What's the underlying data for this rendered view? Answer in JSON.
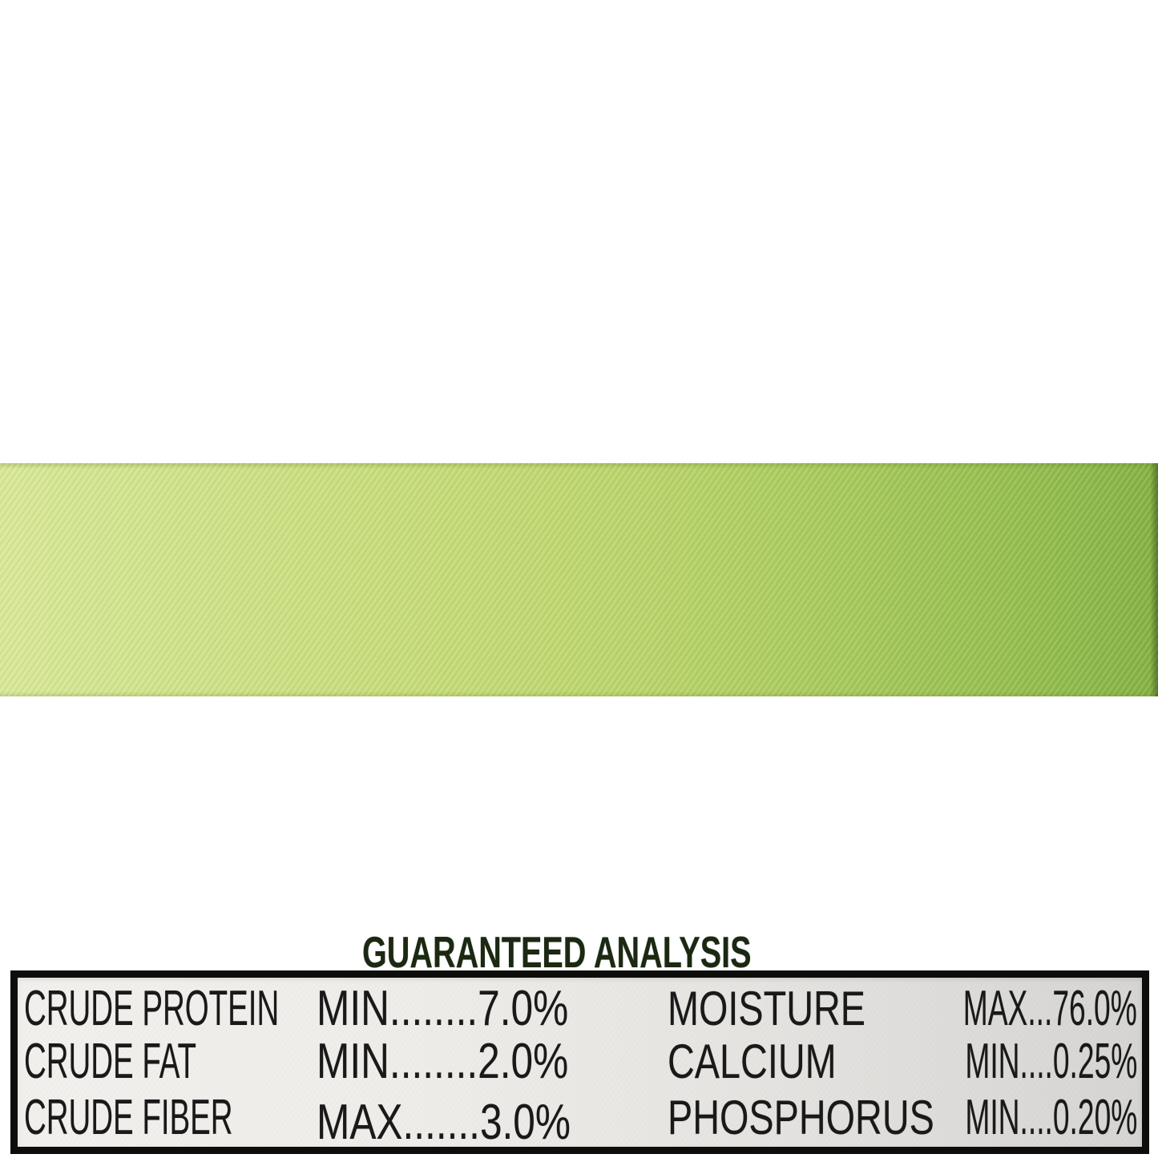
{
  "label": {
    "title": "GUARANTEED ANALYSIS",
    "rows": [
      {
        "left_name": "CRUDE PROTEIN",
        "left_value": "MIN........7.0%",
        "right_name": "MOISTURE",
        "right_value": "MAX...76.0%"
      },
      {
        "left_name": "CRUDE FAT",
        "left_value": "MIN........2.0%",
        "right_name": "CALCIUM",
        "right_value": "MIN....0.25%"
      },
      {
        "left_name": "CRUDE FIBER",
        "left_value": "MAX.......3.0%",
        "right_name": "PHOSPHORUS",
        "right_value": "MIN....0.20%"
      }
    ],
    "colors": {
      "page_background": "#ffffff",
      "band_green_left": "#d2e48e",
      "band_green_right": "#8db94a",
      "band_edge_dark": "#4c6e1e",
      "panel_background_left": "#f2f0ed",
      "panel_background_right": "#d6d5d3",
      "panel_border": "#0d0d0b",
      "heading_text": "#1c2912",
      "body_text": "#191919"
    }
  }
}
